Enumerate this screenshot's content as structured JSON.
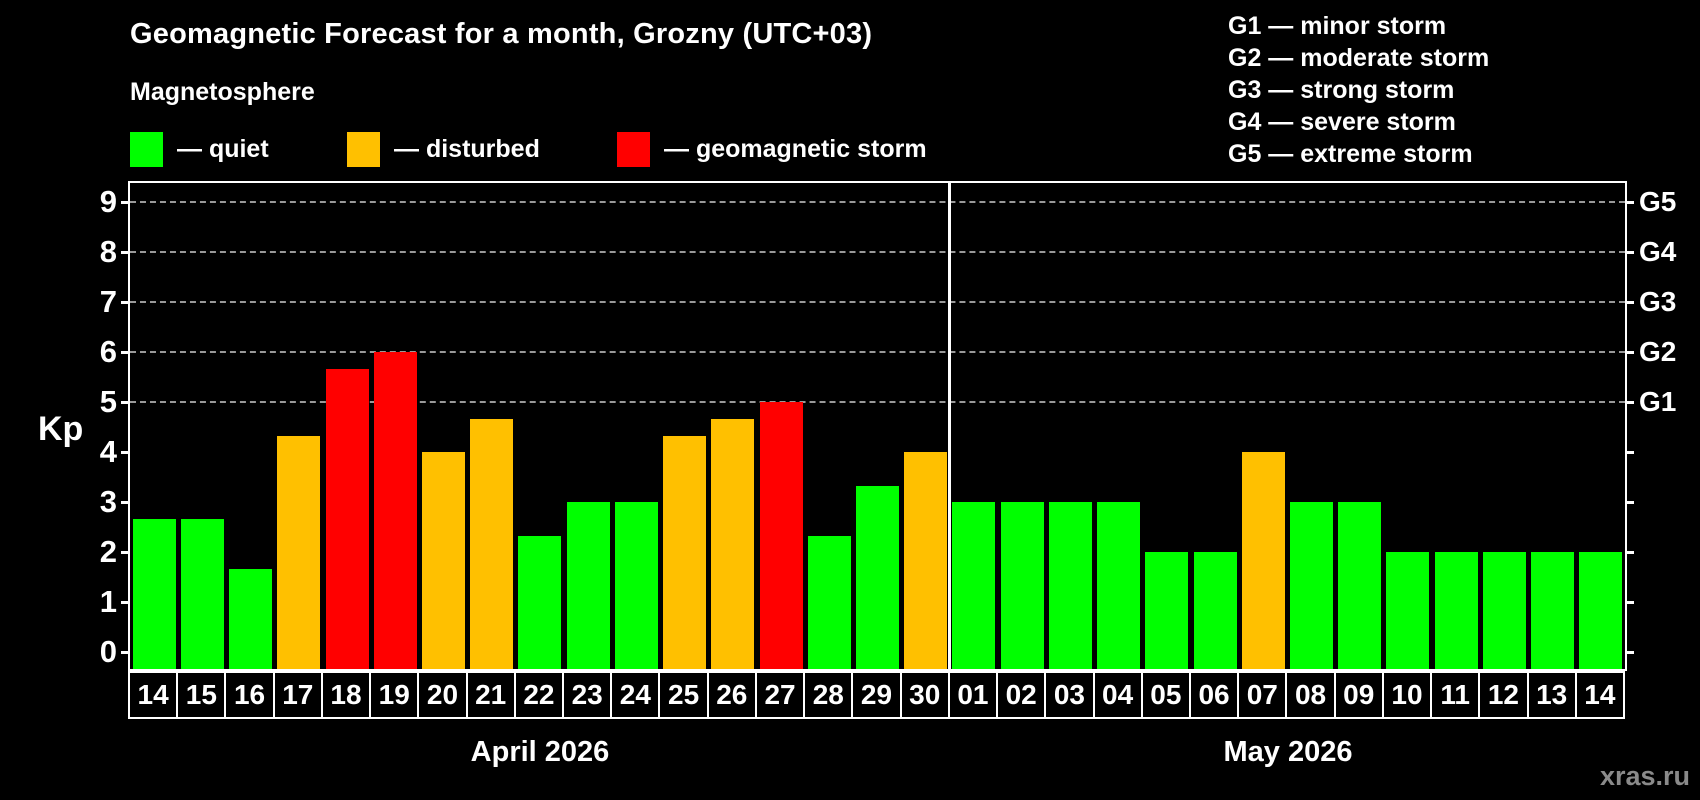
{
  "header": {
    "subtitle": "Magnetosphere"
  },
  "legend": {
    "items": [
      {
        "name": "quiet",
        "label": "— quiet",
        "color": "#00ff00"
      },
      {
        "name": "disturbed",
        "label": "— disturbed",
        "color": "#ffc000"
      },
      {
        "name": "storm",
        "label": "— geomagnetic storm",
        "color": "#ff0000"
      }
    ]
  },
  "g_legend": {
    "lines": [
      "G1 — minor storm",
      "G2 — moderate storm",
      "G3 — strong storm",
      "G4 — severe storm",
      "G5 — extreme storm"
    ]
  },
  "watermark": "xras.ru",
  "chart_data": {
    "type": "bar",
    "title": "Geomagnetic Forecast for a month, Grozny (UTC+03)",
    "ylabel": "Kp",
    "ylim": [
      0,
      9
    ],
    "yticks": [
      0,
      1,
      2,
      3,
      4,
      5,
      6,
      7,
      8,
      9
    ],
    "grid": "dashed horizontal lines at Kp 5–9 only",
    "right_axis": [
      {
        "kp": 5,
        "label": "G1"
      },
      {
        "kp": 6,
        "label": "G2"
      },
      {
        "kp": 7,
        "label": "G3"
      },
      {
        "kp": 8,
        "label": "G4"
      },
      {
        "kp": 9,
        "label": "G5"
      }
    ],
    "status_colors": {
      "quiet": "#00ff00",
      "disturbed": "#ffc000",
      "storm": "#ff0000"
    },
    "groups": [
      {
        "month": "April 2026",
        "days": [
          {
            "day": "14",
            "kp": 2.67,
            "status": "quiet"
          },
          {
            "day": "15",
            "kp": 2.67,
            "status": "quiet"
          },
          {
            "day": "16",
            "kp": 1.67,
            "status": "quiet"
          },
          {
            "day": "17",
            "kp": 4.33,
            "status": "disturbed"
          },
          {
            "day": "18",
            "kp": 5.67,
            "status": "storm"
          },
          {
            "day": "19",
            "kp": 6.0,
            "status": "storm"
          },
          {
            "day": "20",
            "kp": 4.0,
            "status": "disturbed"
          },
          {
            "day": "21",
            "kp": 4.67,
            "status": "disturbed"
          },
          {
            "day": "22",
            "kp": 2.33,
            "status": "quiet"
          },
          {
            "day": "23",
            "kp": 3.0,
            "status": "quiet"
          },
          {
            "day": "24",
            "kp": 3.0,
            "status": "quiet"
          },
          {
            "day": "25",
            "kp": 4.33,
            "status": "disturbed"
          },
          {
            "day": "26",
            "kp": 4.67,
            "status": "disturbed"
          },
          {
            "day": "27",
            "kp": 5.0,
            "status": "storm"
          },
          {
            "day": "28",
            "kp": 2.33,
            "status": "quiet"
          },
          {
            "day": "29",
            "kp": 3.33,
            "status": "quiet"
          },
          {
            "day": "30",
            "kp": 4.0,
            "status": "disturbed"
          }
        ]
      },
      {
        "month": "May 2026",
        "days": [
          {
            "day": "01",
            "kp": 3.0,
            "status": "quiet"
          },
          {
            "day": "02",
            "kp": 3.0,
            "status": "quiet"
          },
          {
            "day": "03",
            "kp": 3.0,
            "status": "quiet"
          },
          {
            "day": "04",
            "kp": 3.0,
            "status": "quiet"
          },
          {
            "day": "05",
            "kp": 2.0,
            "status": "quiet"
          },
          {
            "day": "06",
            "kp": 2.0,
            "status": "quiet"
          },
          {
            "day": "07",
            "kp": 4.0,
            "status": "disturbed"
          },
          {
            "day": "08",
            "kp": 3.0,
            "status": "quiet"
          },
          {
            "day": "09",
            "kp": 3.0,
            "status": "quiet"
          },
          {
            "day": "10",
            "kp": 2.0,
            "status": "quiet"
          },
          {
            "day": "11",
            "kp": 2.0,
            "status": "quiet"
          },
          {
            "day": "12",
            "kp": 2.0,
            "status": "quiet"
          },
          {
            "day": "13",
            "kp": 2.0,
            "status": "quiet"
          },
          {
            "day": "14",
            "kp": 2.0,
            "status": "quiet"
          }
        ]
      }
    ]
  }
}
